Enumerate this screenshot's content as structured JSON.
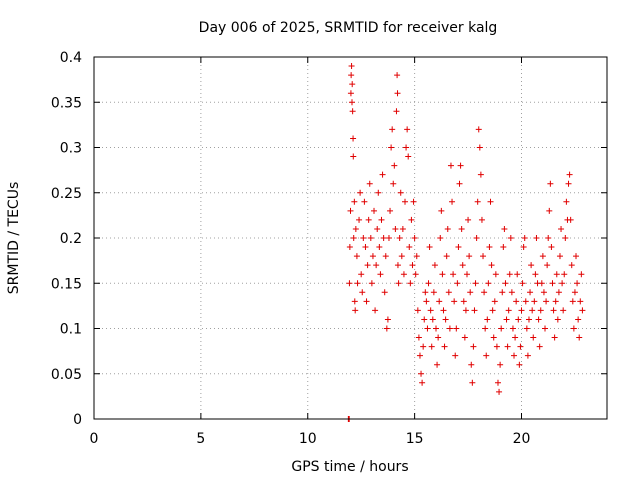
{
  "chart_data": {
    "type": "scatter",
    "title": "Day 006 of 2025, SRMTID for receiver kalg",
    "xlabel": "GPS time / hours",
    "ylabel": "SRMTID / TECUs",
    "xlim": [
      0,
      24
    ],
    "ylim": [
      0,
      0.4
    ],
    "xticks": [
      0,
      5,
      10,
      15,
      20
    ],
    "xtick_labels": [
      "0",
      "5",
      "10",
      "15",
      "20"
    ],
    "yticks": [
      0,
      0.05,
      0.1,
      0.15,
      0.2,
      0.25,
      0.3,
      0.35,
      0.4
    ],
    "ytick_labels": [
      "0",
      "0.05",
      "0.1",
      "0.15",
      "0.2",
      "0.25",
      "0.3",
      "0.35",
      "0.4"
    ],
    "grid": true,
    "marker": "+",
    "color": "#e00000",
    "series": [
      {
        "name": "SRMTID",
        "points": [
          [
            11.9,
            0.0
          ],
          [
            11.92,
            0.0
          ],
          [
            11.94,
            0.0
          ],
          [
            11.95,
            0.15
          ],
          [
            11.97,
            0.19
          ],
          [
            12.0,
            0.23
          ],
          [
            12.02,
            0.36
          ],
          [
            12.03,
            0.38
          ],
          [
            12.05,
            0.39
          ],
          [
            12.07,
            0.35
          ],
          [
            12.08,
            0.37
          ],
          [
            12.1,
            0.34
          ],
          [
            12.12,
            0.31
          ],
          [
            12.13,
            0.29
          ],
          [
            12.15,
            0.2
          ],
          [
            12.18,
            0.24
          ],
          [
            12.2,
            0.13
          ],
          [
            12.22,
            0.12
          ],
          [
            12.25,
            0.21
          ],
          [
            12.3,
            0.18
          ],
          [
            12.33,
            0.15
          ],
          [
            12.4,
            0.22
          ],
          [
            12.45,
            0.25
          ],
          [
            12.5,
            0.16
          ],
          [
            12.55,
            0.14
          ],
          [
            12.6,
            0.2
          ],
          [
            12.65,
            0.24
          ],
          [
            12.7,
            0.19
          ],
          [
            12.75,
            0.13
          ],
          [
            12.8,
            0.17
          ],
          [
            12.85,
            0.22
          ],
          [
            12.9,
            0.26
          ],
          [
            12.95,
            0.2
          ],
          [
            13.0,
            0.15
          ],
          [
            13.05,
            0.18
          ],
          [
            13.1,
            0.23
          ],
          [
            13.15,
            0.12
          ],
          [
            13.2,
            0.17
          ],
          [
            13.25,
            0.21
          ],
          [
            13.3,
            0.25
          ],
          [
            13.35,
            0.19
          ],
          [
            13.4,
            0.16
          ],
          [
            13.45,
            0.22
          ],
          [
            13.5,
            0.27
          ],
          [
            13.55,
            0.2
          ],
          [
            13.6,
            0.14
          ],
          [
            13.65,
            0.18
          ],
          [
            13.7,
            0.1
          ],
          [
            13.75,
            0.11
          ],
          [
            13.8,
            0.2
          ],
          [
            13.85,
            0.23
          ],
          [
            13.9,
            0.3
          ],
          [
            13.95,
            0.32
          ],
          [
            14.0,
            0.26
          ],
          [
            14.05,
            0.28
          ],
          [
            14.1,
            0.21
          ],
          [
            14.15,
            0.34
          ],
          [
            14.18,
            0.38
          ],
          [
            14.2,
            0.36
          ],
          [
            14.22,
            0.17
          ],
          [
            14.25,
            0.15
          ],
          [
            14.3,
            0.2
          ],
          [
            14.35,
            0.25
          ],
          [
            14.4,
            0.18
          ],
          [
            14.45,
            0.21
          ],
          [
            14.5,
            0.16
          ],
          [
            14.55,
            0.24
          ],
          [
            14.6,
            0.3
          ],
          [
            14.65,
            0.32
          ],
          [
            14.7,
            0.29
          ],
          [
            14.75,
            0.19
          ],
          [
            14.8,
            0.15
          ],
          [
            14.85,
            0.22
          ],
          [
            14.9,
            0.17
          ],
          [
            14.95,
            0.24
          ],
          [
            15.0,
            0.2
          ],
          [
            15.05,
            0.16
          ],
          [
            15.1,
            0.18
          ],
          [
            15.15,
            0.12
          ],
          [
            15.2,
            0.09
          ],
          [
            15.25,
            0.07
          ],
          [
            15.3,
            0.05
          ],
          [
            15.35,
            0.04
          ],
          [
            15.4,
            0.08
          ],
          [
            15.45,
            0.11
          ],
          [
            15.5,
            0.14
          ],
          [
            15.55,
            0.13
          ],
          [
            15.6,
            0.1
          ],
          [
            15.65,
            0.15
          ],
          [
            15.7,
            0.19
          ],
          [
            15.75,
            0.12
          ],
          [
            15.8,
            0.08
          ],
          [
            15.85,
            0.11
          ],
          [
            15.9,
            0.14
          ],
          [
            15.95,
            0.17
          ],
          [
            16.0,
            0.1
          ],
          [
            16.05,
            0.06
          ],
          [
            16.1,
            0.09
          ],
          [
            16.15,
            0.13
          ],
          [
            16.2,
            0.2
          ],
          [
            16.25,
            0.23
          ],
          [
            16.3,
            0.16
          ],
          [
            16.35,
            0.12
          ],
          [
            16.4,
            0.08
          ],
          [
            16.45,
            0.11
          ],
          [
            16.5,
            0.18
          ],
          [
            16.55,
            0.21
          ],
          [
            16.6,
            0.14
          ],
          [
            16.65,
            0.1
          ],
          [
            16.7,
            0.28
          ],
          [
            16.75,
            0.24
          ],
          [
            16.8,
            0.16
          ],
          [
            16.85,
            0.13
          ],
          [
            16.9,
            0.07
          ],
          [
            16.95,
            0.1
          ],
          [
            17.0,
            0.15
          ],
          [
            17.05,
            0.19
          ],
          [
            17.1,
            0.26
          ],
          [
            17.15,
            0.28
          ],
          [
            17.2,
            0.21
          ],
          [
            17.25,
            0.17
          ],
          [
            17.3,
            0.13
          ],
          [
            17.35,
            0.09
          ],
          [
            17.4,
            0.12
          ],
          [
            17.45,
            0.16
          ],
          [
            17.5,
            0.22
          ],
          [
            17.55,
            0.18
          ],
          [
            17.6,
            0.14
          ],
          [
            17.65,
            0.06
          ],
          [
            17.7,
            0.04
          ],
          [
            17.75,
            0.08
          ],
          [
            17.8,
            0.12
          ],
          [
            17.85,
            0.15
          ],
          [
            17.9,
            0.2
          ],
          [
            17.95,
            0.24
          ],
          [
            18.0,
            0.32
          ],
          [
            18.05,
            0.3
          ],
          [
            18.1,
            0.27
          ],
          [
            18.15,
            0.22
          ],
          [
            18.2,
            0.18
          ],
          [
            18.25,
            0.14
          ],
          [
            18.3,
            0.1
          ],
          [
            18.35,
            0.07
          ],
          [
            18.4,
            0.11
          ],
          [
            18.45,
            0.15
          ],
          [
            18.5,
            0.19
          ],
          [
            18.55,
            0.24
          ],
          [
            18.6,
            0.17
          ],
          [
            18.65,
            0.12
          ],
          [
            18.7,
            0.09
          ],
          [
            18.75,
            0.13
          ],
          [
            18.8,
            0.16
          ],
          [
            18.85,
            0.08
          ],
          [
            18.9,
            0.04
          ],
          [
            18.95,
            0.03
          ],
          [
            19.0,
            0.06
          ],
          [
            19.05,
            0.1
          ],
          [
            19.1,
            0.14
          ],
          [
            19.15,
            0.19
          ],
          [
            19.2,
            0.21
          ],
          [
            19.25,
            0.15
          ],
          [
            19.3,
            0.11
          ],
          [
            19.35,
            0.08
          ],
          [
            19.4,
            0.12
          ],
          [
            19.45,
            0.16
          ],
          [
            19.5,
            0.2
          ],
          [
            19.55,
            0.14
          ],
          [
            19.6,
            0.1
          ],
          [
            19.65,
            0.07
          ],
          [
            19.7,
            0.09
          ],
          [
            19.75,
            0.13
          ],
          [
            19.8,
            0.16
          ],
          [
            19.85,
            0.11
          ],
          [
            19.9,
            0.06
          ],
          [
            19.95,
            0.08
          ],
          [
            20.0,
            0.12
          ],
          [
            20.05,
            0.15
          ],
          [
            20.1,
            0.19
          ],
          [
            20.15,
            0.2
          ],
          [
            20.2,
            0.13
          ],
          [
            20.25,
            0.1
          ],
          [
            20.3,
            0.07
          ],
          [
            20.35,
            0.11
          ],
          [
            20.4,
            0.14
          ],
          [
            20.45,
            0.17
          ],
          [
            20.5,
            0.12
          ],
          [
            20.55,
            0.09
          ],
          [
            20.6,
            0.13
          ],
          [
            20.65,
            0.16
          ],
          [
            20.7,
            0.2
          ],
          [
            20.75,
            0.15
          ],
          [
            20.8,
            0.11
          ],
          [
            20.85,
            0.08
          ],
          [
            20.9,
            0.12
          ],
          [
            20.95,
            0.15
          ],
          [
            21.0,
            0.18
          ],
          [
            21.05,
            0.14
          ],
          [
            21.1,
            0.1
          ],
          [
            21.15,
            0.13
          ],
          [
            21.2,
            0.17
          ],
          [
            21.25,
            0.2
          ],
          [
            21.3,
            0.23
          ],
          [
            21.35,
            0.26
          ],
          [
            21.4,
            0.19
          ],
          [
            21.45,
            0.15
          ],
          [
            21.5,
            0.12
          ],
          [
            21.55,
            0.09
          ],
          [
            21.6,
            0.13
          ],
          [
            21.65,
            0.16
          ],
          [
            21.7,
            0.11
          ],
          [
            21.75,
            0.14
          ],
          [
            21.8,
            0.18
          ],
          [
            21.85,
            0.21
          ],
          [
            21.9,
            0.15
          ],
          [
            21.95,
            0.12
          ],
          [
            22.0,
            0.16
          ],
          [
            22.05,
            0.2
          ],
          [
            22.1,
            0.24
          ],
          [
            22.15,
            0.22
          ],
          [
            22.2,
            0.26
          ],
          [
            22.25,
            0.27
          ],
          [
            22.3,
            0.22
          ],
          [
            22.35,
            0.17
          ],
          [
            22.4,
            0.13
          ],
          [
            22.45,
            0.1
          ],
          [
            22.5,
            0.14
          ],
          [
            22.55,
            0.18
          ],
          [
            22.6,
            0.15
          ],
          [
            22.65,
            0.11
          ],
          [
            22.7,
            0.09
          ],
          [
            22.75,
            0.13
          ],
          [
            22.8,
            0.16
          ],
          [
            22.85,
            0.12
          ]
        ]
      }
    ]
  }
}
